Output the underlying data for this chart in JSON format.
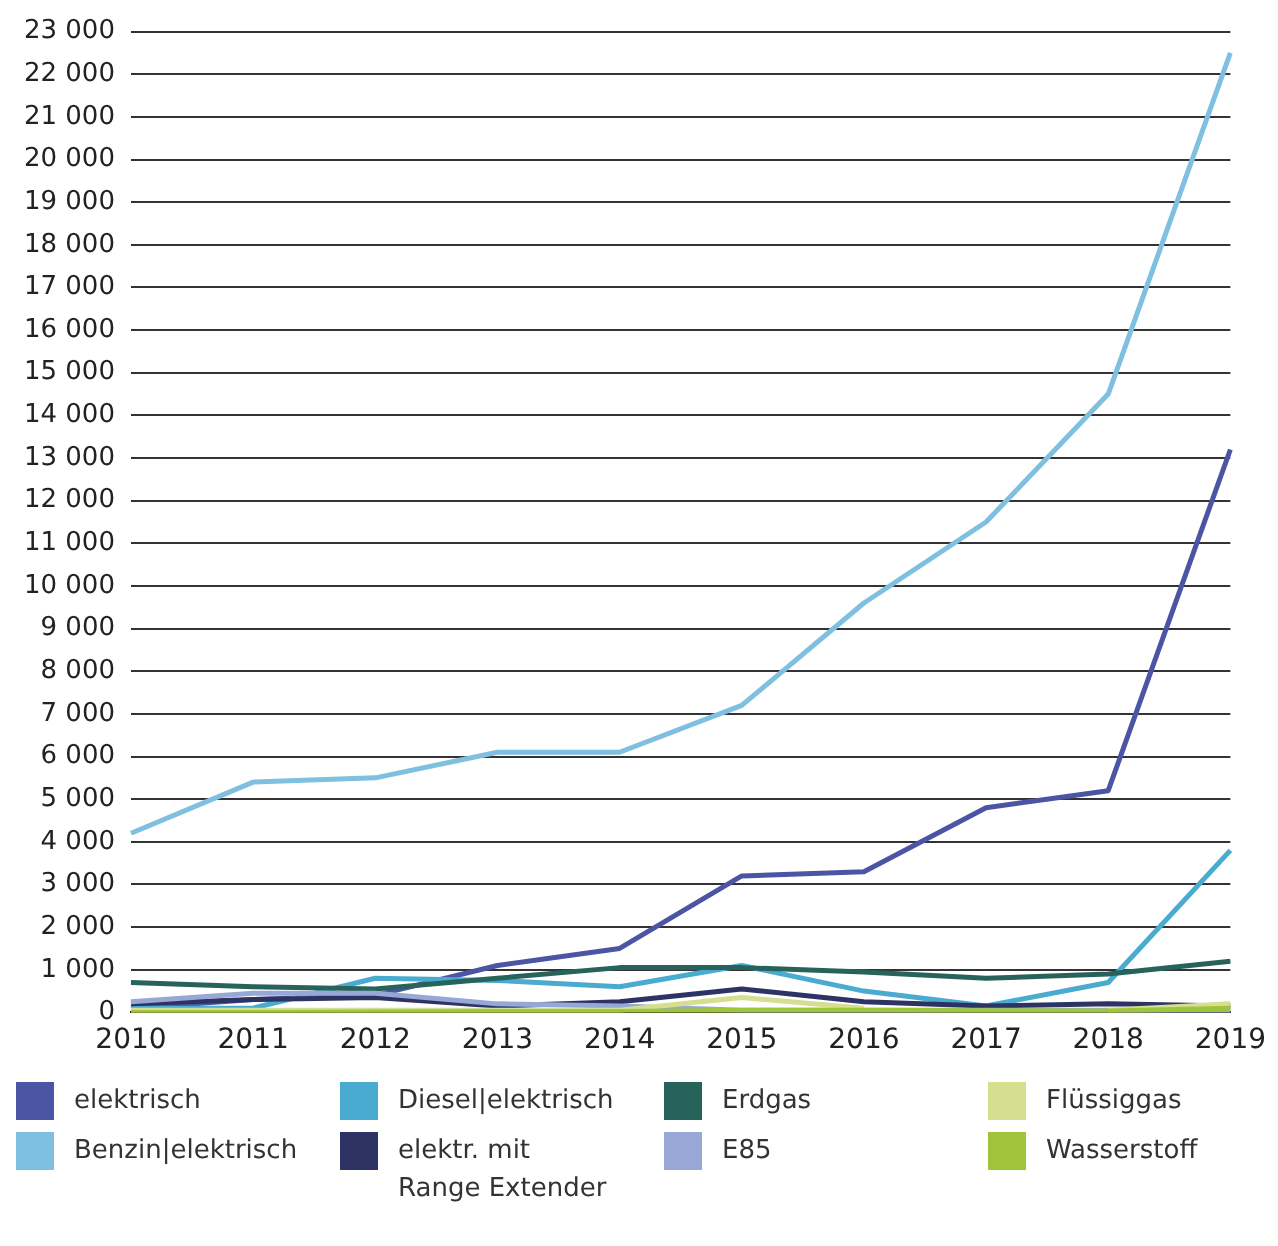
{
  "chart_data": {
    "type": "line",
    "categories": [
      "2010",
      "2011",
      "2012",
      "2013",
      "2014",
      "2015",
      "2016",
      "2017",
      "2018",
      "2019"
    ],
    "ylim": [
      0,
      23000
    ],
    "yticks": [
      0,
      {
        "value": 1000,
        "label": "1 000"
      },
      {
        "value": 2000,
        "label": "2 000"
      },
      {
        "value": 3000,
        "label": "3 000"
      },
      {
        "value": 4000,
        "label": "4 000"
      },
      {
        "value": 5000,
        "label": "5 000"
      },
      {
        "value": 6000,
        "label": "6 000"
      },
      {
        "value": 7000,
        "label": "7 000"
      },
      {
        "value": 8000,
        "label": "8 000"
      },
      {
        "value": 9000,
        "label": "9 000"
      },
      {
        "value": 10000,
        "label": "10 000"
      },
      {
        "value": 11000,
        "label": "11 000"
      },
      {
        "value": 12000,
        "label": "12 000"
      },
      {
        "value": 13000,
        "label": "13 000"
      },
      {
        "value": 14000,
        "label": "14 000"
      },
      {
        "value": 15000,
        "label": "15 000"
      },
      {
        "value": 16000,
        "label": "16 000"
      },
      {
        "value": 17000,
        "label": "17 000"
      },
      {
        "value": 18000,
        "label": "18 000"
      },
      {
        "value": 19000,
        "label": "19 000"
      },
      {
        "value": 20000,
        "label": "20 000"
      },
      {
        "value": 21000,
        "label": "21 000"
      },
      {
        "value": 22000,
        "label": "22 000"
      },
      {
        "value": 23000,
        "label": "23 000"
      }
    ],
    "grid": "y",
    "legend": "bottom",
    "marker": "none",
    "line_style": "solid",
    "series": [
      {
        "name": "elektrisch",
        "color": "#4b55a3",
        "values": [
          100,
          300,
          400,
          1100,
          1500,
          3200,
          3300,
          4800,
          5200,
          13200
        ]
      },
      {
        "name": "Benzin|elektrisch",
        "color": "#7fbfdf",
        "values": [
          4200,
          5400,
          5500,
          6100,
          6100,
          7200,
          9600,
          11500,
          14500,
          22500
        ]
      },
      {
        "name": "Diesel|elektrisch",
        "color": "#4aabd0",
        "values": [
          100,
          100,
          800,
          750,
          600,
          1100,
          500,
          150,
          700,
          3800
        ]
      },
      {
        "name": "elektr. mit\nRange Extender",
        "color": "#2d3363",
        "values": [
          200,
          300,
          350,
          150,
          250,
          550,
          250,
          150,
          200,
          150
        ]
      },
      {
        "name": "Erdgas",
        "color": "#27635a",
        "values": [
          700,
          600,
          550,
          800,
          1050,
          1050,
          950,
          800,
          900,
          1200
        ]
      },
      {
        "name": "E85",
        "color": "#98a8d6",
        "values": [
          250,
          450,
          450,
          200,
          150,
          50,
          50,
          50,
          50,
          20
        ]
      },
      {
        "name": "Flüssiggas",
        "color": "#d5df8f",
        "values": [
          50,
          50,
          50,
          50,
          50,
          350,
          100,
          null,
          50,
          200
        ]
      },
      {
        "name": "Wasserstoff",
        "color": "#a0c43c",
        "values": [
          0,
          0,
          10,
          20,
          20,
          50,
          50,
          40,
          30,
          100
        ]
      }
    ]
  }
}
